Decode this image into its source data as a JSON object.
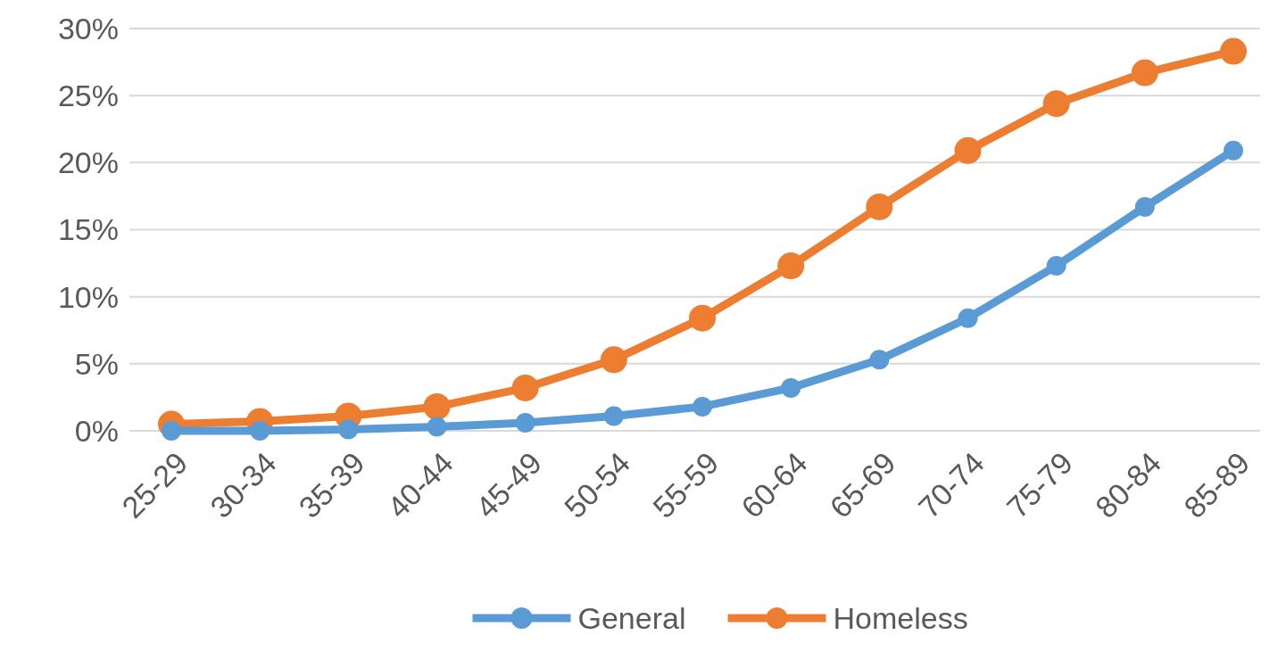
{
  "chart_data": {
    "type": "line",
    "categories": [
      "25-29",
      "30-34",
      "35-39",
      "40-44",
      "45-49",
      "50-54",
      "55-59",
      "60-64",
      "65-69",
      "70-74",
      "75-79",
      "80-84",
      "85-89"
    ],
    "series": [
      {
        "name": "General",
        "color": "#5b9bd5",
        "values": [
          0,
          0,
          0.1,
          0.3,
          0.6,
          1.1,
          1.8,
          3.2,
          5.3,
          8.4,
          12.3,
          16.7,
          20.9
        ]
      },
      {
        "name": "Homeless",
        "color": "#ed7d31",
        "values": [
          0.5,
          0.7,
          1.1,
          1.8,
          3.2,
          5.3,
          8.4,
          12.3,
          16.7,
          20.9,
          24.4,
          26.7,
          28.3
        ]
      }
    ],
    "ylim": [
      0,
      30
    ],
    "yticks": [
      {
        "value": 0,
        "label": "0%"
      },
      {
        "value": 5,
        "label": "5%"
      },
      {
        "value": 10,
        "label": "10%"
      },
      {
        "value": 15,
        "label": "15%"
      },
      {
        "value": 20,
        "label": "20%"
      },
      {
        "value": 25,
        "label": "25%"
      },
      {
        "value": 30,
        "label": "30%"
      }
    ],
    "grid": "y",
    "legend": "bottom",
    "marker": "circle",
    "line_style": "solid"
  }
}
